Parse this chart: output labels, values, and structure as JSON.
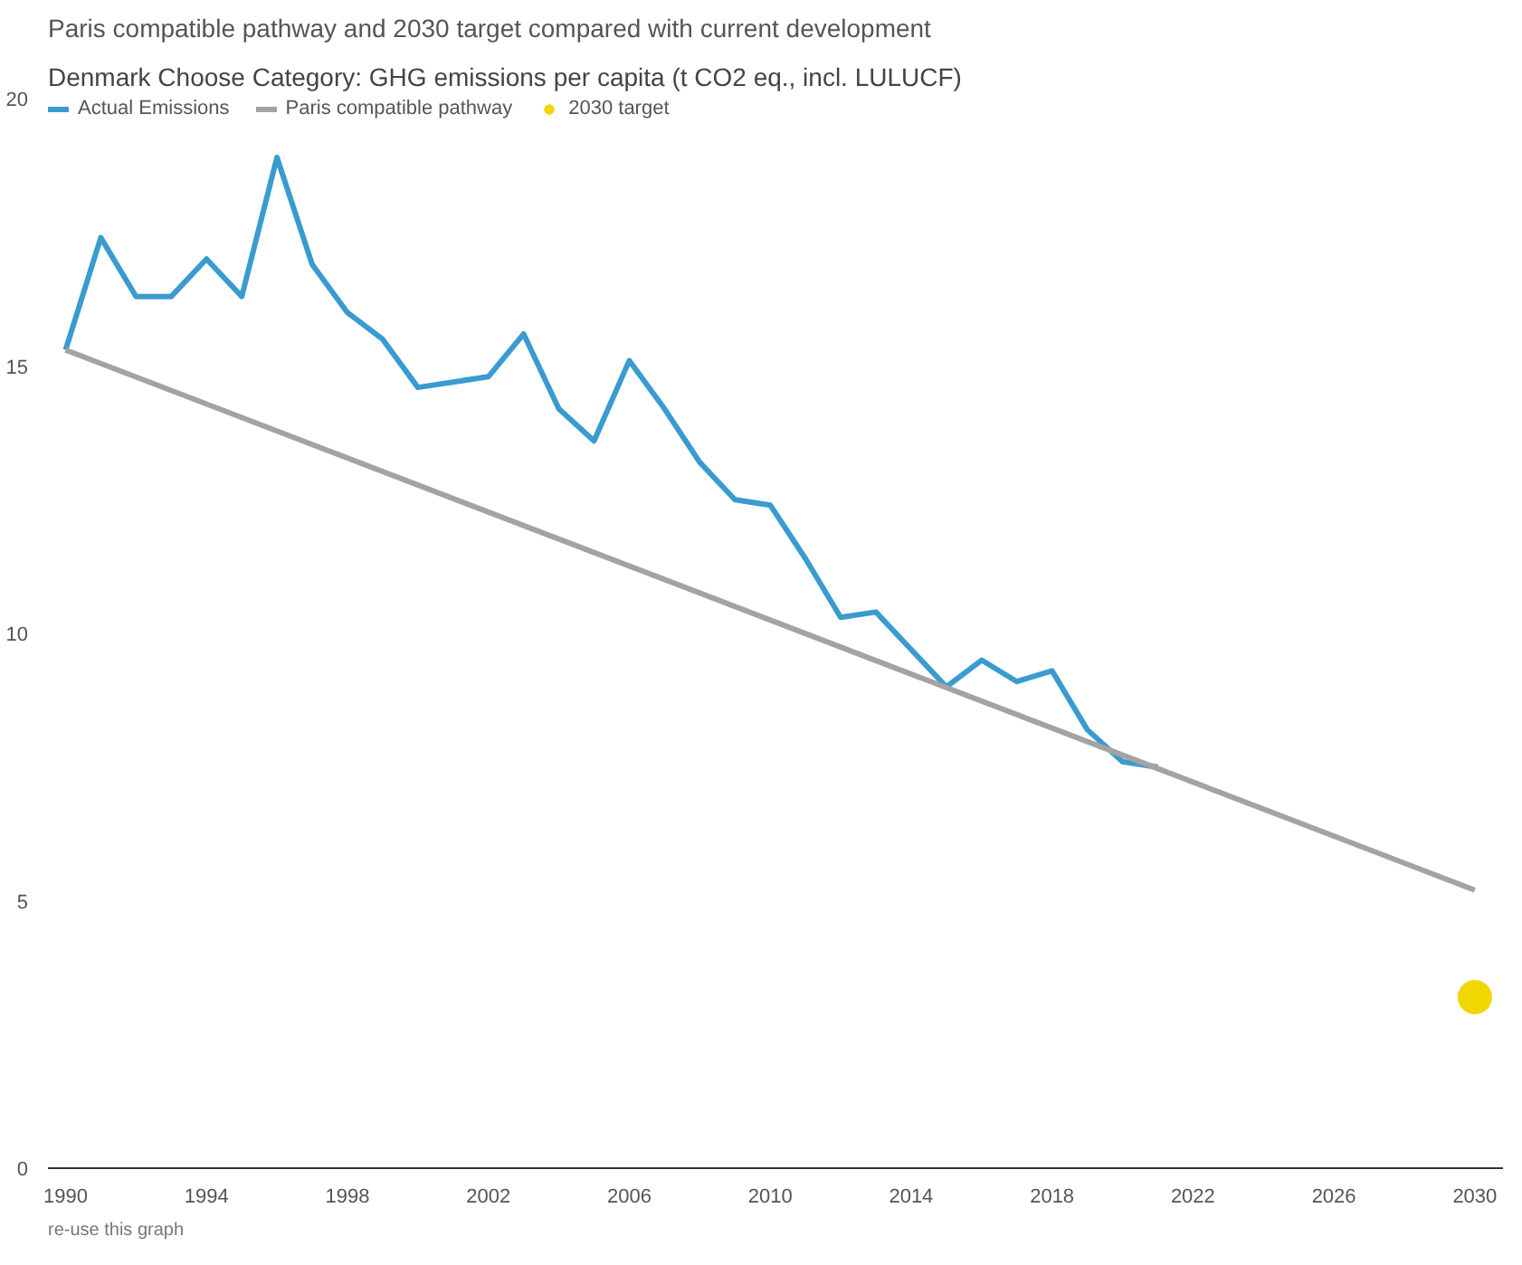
{
  "chart_data": {
    "type": "line",
    "title": "Paris compatible pathway and 2030 target compared with current development",
    "annotations": [
      "Denmark",
      "Choose Category: GHG emissions per capita (t CO2 eq., incl. LULUCF)",
      "re-use this graph"
    ],
    "series": [
      {
        "name": "Actual Emissions",
        "color": "#3a9bd0",
        "x": [
          1990,
          1991,
          1992,
          1993,
          1994,
          1995,
          1996,
          1997,
          1998,
          1999,
          2000,
          2001,
          2002,
          2003,
          2004,
          2005,
          2006,
          2007,
          2008,
          2009,
          2010,
          2011,
          2012,
          2013,
          2014,
          2015,
          2016,
          2017,
          2018,
          2019,
          2020,
          2021
        ],
        "values": [
          15.3,
          17.4,
          16.3,
          16.3,
          17.0,
          16.3,
          18.9,
          16.9,
          16.0,
          15.5,
          14.6,
          14.7,
          14.8,
          15.6,
          14.2,
          13.6,
          15.1,
          14.2,
          13.2,
          12.5,
          12.4,
          11.4,
          10.3,
          10.4,
          9.7,
          9.0,
          9.5,
          9.1,
          9.3,
          8.2,
          7.6,
          7.5
        ]
      },
      {
        "name": "Paris compatible pathway",
        "color": "#a3a3a3",
        "x": [
          1990,
          2030
        ],
        "values": [
          15.3,
          5.2
        ]
      },
      {
        "name": "2030 target",
        "type": "scatter",
        "marker": "circle",
        "color": "#f2d600",
        "x": [
          2030
        ],
        "values": [
          3.2
        ]
      }
    ],
    "xlim": [
      1989.5,
      2030.8
    ],
    "xticks": [
      1990,
      1994,
      1998,
      2002,
      2006,
      2010,
      2014,
      2018,
      2022,
      2026,
      2030
    ],
    "ylim": [
      0,
      20
    ],
    "yticks": [
      0,
      5,
      10,
      15,
      20
    ],
    "grid": false,
    "legend": "top left",
    "marker": "none",
    "line_style": "solid"
  }
}
